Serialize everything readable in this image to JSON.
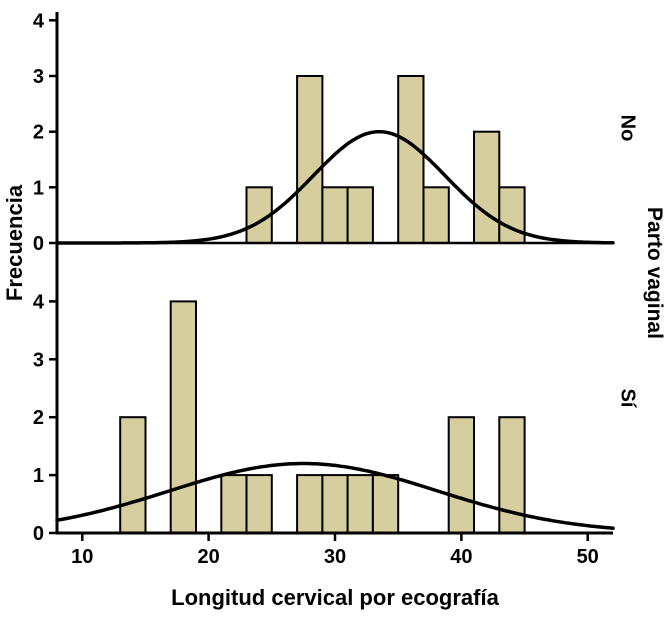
{
  "chart_data": {
    "type": "bar",
    "subtype": "paneled-histogram-with-normal-curve",
    "title": "",
    "xlabel": "Longitud cervical por ecografía",
    "ylabel": "Frecuencia",
    "panel_axis_title": "Parto vaginal",
    "x_ticks": [
      10,
      20,
      30,
      40,
      50
    ],
    "xlim": [
      8,
      52
    ],
    "bin_width": 2,
    "grid": "off",
    "legend": "none",
    "bar_fill": "#d6ce9e",
    "bar_stroke": "#000000",
    "curve_color": "#000000",
    "panels": [
      {
        "label": "No",
        "y_ticks": [
          0,
          1,
          2,
          3,
          4
        ],
        "ylim": [
          0,
          4.15
        ],
        "bars": [
          {
            "bin_start": 23,
            "bin_end": 25,
            "frequency": 1
          },
          {
            "bin_start": 27,
            "bin_end": 29,
            "frequency": 3
          },
          {
            "bin_start": 29,
            "bin_end": 31,
            "frequency": 1
          },
          {
            "bin_start": 31,
            "bin_end": 33,
            "frequency": 1
          },
          {
            "bin_start": 35,
            "bin_end": 37,
            "frequency": 3
          },
          {
            "bin_start": 37,
            "bin_end": 39,
            "frequency": 1
          },
          {
            "bin_start": 41,
            "bin_end": 43,
            "frequency": 2
          },
          {
            "bin_start": 43,
            "bin_end": 45,
            "frequency": 1
          }
        ],
        "normal_curve": {
          "mean": 33.5,
          "sd": 5.2,
          "peak": 2.0
        }
      },
      {
        "label": "Sí",
        "y_ticks": [
          0,
          1,
          2,
          3,
          4
        ],
        "ylim": [
          0,
          4.75
        ],
        "bars": [
          {
            "bin_start": 13,
            "bin_end": 15,
            "frequency": 2
          },
          {
            "bin_start": 17,
            "bin_end": 19,
            "frequency": 4
          },
          {
            "bin_start": 21,
            "bin_end": 23,
            "frequency": 1
          },
          {
            "bin_start": 23,
            "bin_end": 25,
            "frequency": 1
          },
          {
            "bin_start": 27,
            "bin_end": 29,
            "frequency": 1
          },
          {
            "bin_start": 29,
            "bin_end": 31,
            "frequency": 1
          },
          {
            "bin_start": 31,
            "bin_end": 33,
            "frequency": 1
          },
          {
            "bin_start": 33,
            "bin_end": 35,
            "frequency": 1
          },
          {
            "bin_start": 39,
            "bin_end": 41,
            "frequency": 2
          },
          {
            "bin_start": 43,
            "bin_end": 45,
            "frequency": 2
          }
        ],
        "normal_curve": {
          "mean": 27.5,
          "sd": 10.6,
          "peak": 1.2
        }
      }
    ]
  }
}
